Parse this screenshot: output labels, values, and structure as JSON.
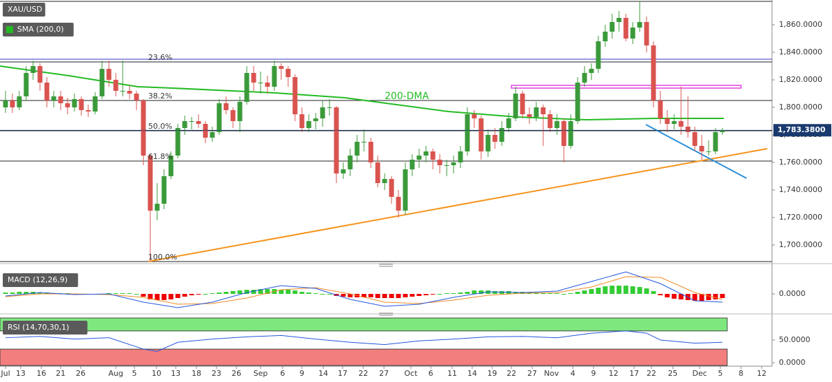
{
  "chart_data": [
    {
      "type": "candlestick",
      "title": "XAU/USD",
      "candles": [
        [
          1800,
          1812,
          1796,
          1805
        ],
        [
          1805,
          1810,
          1796,
          1800
        ],
        [
          1800,
          1812,
          1798,
          1808
        ],
        [
          1808,
          1830,
          1805,
          1825
        ],
        [
          1825,
          1834,
          1820,
          1830
        ],
        [
          1830,
          1832,
          1812,
          1818
        ],
        [
          1818,
          1822,
          1800,
          1805
        ],
        [
          1805,
          1812,
          1800,
          1808
        ],
        [
          1808,
          1812,
          1798,
          1803
        ],
        [
          1803,
          1807,
          1795,
          1800
        ],
        [
          1800,
          1810,
          1797,
          1806
        ],
        [
          1806,
          1808,
          1794,
          1798
        ],
        [
          1798,
          1802,
          1793,
          1797
        ],
        [
          1797,
          1811,
          1795,
          1808
        ],
        [
          1808,
          1834,
          1806,
          1828
        ],
        [
          1828,
          1834,
          1815,
          1820
        ],
        [
          1820,
          1825,
          1808,
          1812
        ],
        [
          1812,
          1834,
          1808,
          1812
        ],
        [
          1812,
          1816,
          1806,
          1810
        ],
        [
          1810,
          1812,
          1798,
          1805
        ],
        [
          1805,
          1806,
          1758,
          1765
        ],
        [
          1765,
          1766,
          1688,
          1725
        ],
        [
          1725,
          1745,
          1718,
          1730
        ],
        [
          1730,
          1755,
          1726,
          1750
        ],
        [
          1750,
          1768,
          1748,
          1765
        ],
        [
          1765,
          1788,
          1763,
          1785
        ],
        [
          1785,
          1794,
          1780,
          1790
        ],
        [
          1790,
          1793,
          1784,
          1790
        ],
        [
          1790,
          1795,
          1785,
          1788
        ],
        [
          1788,
          1790,
          1774,
          1778
        ],
        [
          1778,
          1786,
          1775,
          1782
        ],
        [
          1782,
          1806,
          1780,
          1803
        ],
        [
          1803,
          1808,
          1795,
          1798
        ],
        [
          1798,
          1800,
          1785,
          1790
        ],
        [
          1790,
          1808,
          1782,
          1804
        ],
        [
          1804,
          1830,
          1802,
          1825
        ],
        [
          1825,
          1830,
          1812,
          1818
        ],
        [
          1818,
          1826,
          1810,
          1818
        ],
        [
          1818,
          1823,
          1810,
          1815
        ],
        [
          1815,
          1834,
          1812,
          1830
        ],
        [
          1830,
          1832,
          1820,
          1828
        ],
        [
          1828,
          1830,
          1815,
          1822
        ],
        [
          1822,
          1824,
          1790,
          1795
        ],
        [
          1795,
          1800,
          1782,
          1785
        ],
        [
          1785,
          1795,
          1782,
          1790
        ],
        [
          1790,
          1796,
          1784,
          1792
        ],
        [
          1792,
          1805,
          1786,
          1800
        ],
        [
          1800,
          1806,
          1794,
          1800
        ],
        [
          1800,
          1801,
          1745,
          1752
        ],
        [
          1752,
          1760,
          1748,
          1755
        ],
        [
          1755,
          1770,
          1750,
          1765
        ],
        [
          1765,
          1780,
          1760,
          1775
        ],
        [
          1775,
          1784,
          1768,
          1775
        ],
        [
          1775,
          1778,
          1756,
          1760
        ],
        [
          1760,
          1765,
          1742,
          1745
        ],
        [
          1745,
          1752,
          1740,
          1748
        ],
        [
          1748,
          1750,
          1730,
          1735
        ],
        [
          1735,
          1740,
          1720,
          1725
        ],
        [
          1725,
          1760,
          1722,
          1755
        ],
        [
          1755,
          1766,
          1750,
          1762
        ],
        [
          1762,
          1770,
          1756,
          1765
        ],
        [
          1765,
          1772,
          1760,
          1768
        ],
        [
          1768,
          1770,
          1755,
          1762
        ],
        [
          1762,
          1766,
          1752,
          1758
        ],
        [
          1758,
          1762,
          1750,
          1758
        ],
        [
          1758,
          1765,
          1752,
          1760
        ],
        [
          1760,
          1772,
          1756,
          1768
        ],
        [
          1768,
          1800,
          1765,
          1795
        ],
        [
          1795,
          1798,
          1785,
          1792
        ],
        [
          1792,
          1794,
          1762,
          1768
        ],
        [
          1768,
          1784,
          1764,
          1780
        ],
        [
          1780,
          1785,
          1770,
          1775
        ],
        [
          1775,
          1790,
          1772,
          1785
        ],
        [
          1785,
          1796,
          1782,
          1792
        ],
        [
          1792,
          1815,
          1790,
          1810
        ],
        [
          1810,
          1812,
          1792,
          1795
        ],
        [
          1795,
          1800,
          1788,
          1793
        ],
        [
          1793,
          1804,
          1790,
          1800
        ],
        [
          1800,
          1802,
          1772,
          1795
        ],
        [
          1795,
          1798,
          1782,
          1785
        ],
        [
          1785,
          1795,
          1780,
          1790
        ],
        [
          1790,
          1792,
          1760,
          1772
        ],
        [
          1772,
          1795,
          1770,
          1790
        ],
        [
          1790,
          1822,
          1788,
          1818
        ],
        [
          1818,
          1830,
          1815,
          1825
        ],
        [
          1825,
          1832,
          1820,
          1828
        ],
        [
          1828,
          1852,
          1825,
          1848
        ],
        [
          1848,
          1860,
          1844,
          1855
        ],
        [
          1855,
          1868,
          1850,
          1862
        ],
        [
          1862,
          1870,
          1855,
          1865
        ],
        [
          1865,
          1868,
          1848,
          1850
        ],
        [
          1850,
          1862,
          1846,
          1858
        ],
        [
          1858,
          1877,
          1855,
          1862
        ],
        [
          1862,
          1866,
          1840,
          1845
        ],
        [
          1845,
          1848,
          1800,
          1805
        ],
        [
          1805,
          1812,
          1788,
          1792
        ],
        [
          1792,
          1798,
          1782,
          1788
        ],
        [
          1788,
          1795,
          1784,
          1790
        ],
        [
          1790,
          1815,
          1780,
          1786
        ],
        [
          1786,
          1808,
          1778,
          1782
        ],
        [
          1782,
          1786,
          1768,
          1772
        ],
        [
          1772,
          1780,
          1762,
          1768
        ],
        [
          1768,
          1776,
          1765,
          1768
        ],
        [
          1768,
          1785,
          1766,
          1782
        ],
        [
          1782,
          1785,
          1780,
          1783.38
        ]
      ],
      "up_color": "#3a9a3a",
      "down_color": "#d9534f",
      "xlim": [
        -0.8,
        111.2
      ],
      "ylim": [
        1688,
        1877
      ],
      "yticks": [
        {
          "value": 1700,
          "label": "1,700.0000"
        },
        {
          "value": 1720,
          "label": "1,720.0000"
        },
        {
          "value": 1740,
          "label": "1,740.0000"
        },
        {
          "value": 1760,
          "label": "1,760.0000"
        },
        {
          "value": 1780,
          "label": "1,780.0000"
        },
        {
          "value": 1800,
          "label": "1,800.0000"
        },
        {
          "value": 1820,
          "label": "1,820.0000"
        },
        {
          "value": 1840,
          "label": "1,840.0000"
        },
        {
          "value": 1860,
          "label": "1,860.0000"
        }
      ],
      "xticks": [
        {
          "value": 0,
          "label": "Jul"
        },
        {
          "value": 2.2,
          "label": "13"
        },
        {
          "value": 5.2,
          "label": "16"
        },
        {
          "value": 8,
          "label": "21"
        },
        {
          "value": 10.9,
          "label": "26"
        },
        {
          "value": 16,
          "label": "Aug"
        },
        {
          "value": 18.7,
          "label": "5"
        },
        {
          "value": 21.9,
          "label": "10"
        },
        {
          "value": 24.7,
          "label": "13"
        },
        {
          "value": 27.7,
          "label": "18"
        },
        {
          "value": 30.6,
          "label": "23"
        },
        {
          "value": 33.5,
          "label": "26"
        },
        {
          "value": 37,
          "label": "Sep"
        },
        {
          "value": 40.2,
          "label": "6"
        },
        {
          "value": 43,
          "label": "9"
        },
        {
          "value": 46.1,
          "label": "14"
        },
        {
          "value": 48.9,
          "label": "17"
        },
        {
          "value": 51.9,
          "label": "22"
        },
        {
          "value": 54.9,
          "label": "27"
        },
        {
          "value": 58.8,
          "label": "Oct"
        },
        {
          "value": 61.7,
          "label": "6"
        },
        {
          "value": 64.8,
          "label": "11"
        },
        {
          "value": 67.7,
          "label": "14"
        },
        {
          "value": 70.6,
          "label": "19"
        },
        {
          "value": 73.4,
          "label": "22"
        },
        {
          "value": 76.4,
          "label": "27"
        },
        {
          "value": 79.2,
          "label": "Nov"
        },
        {
          "value": 82.3,
          "label": "4"
        },
        {
          "value": 85.3,
          "label": "9"
        },
        {
          "value": 88.2,
          "label": "12"
        },
        {
          "value": 91.2,
          "label": "17"
        },
        {
          "value": 93.7,
          "label": "22"
        },
        {
          "value": 96.8,
          "label": "25"
        },
        {
          "value": 100.7,
          "label": "Dec"
        },
        {
          "value": 103.7,
          "label": "5"
        },
        {
          "value": 106.7,
          "label": "8"
        },
        {
          "value": 109.7,
          "label": "12"
        }
      ],
      "sma": {
        "name": "SMA (200,0)",
        "color": "#22bb22",
        "x": [
          -0.8,
          9.2,
          19.2,
          24.2,
          39.2,
          49.2,
          55.2,
          64.2,
          69.2,
          74.2,
          84.2,
          94.2,
          104.2
        ],
        "values": [
          1830,
          1823,
          1815,
          1814,
          1810.5,
          1807,
          1803,
          1797,
          1795,
          1793,
          1791,
          1792,
          1792
        ]
      },
      "hlines": [
        {
          "value": 1877,
          "color": "#222222"
        },
        {
          "value": 1835,
          "color": "#3333cc"
        }
      ],
      "fib_levels": [
        {
          "value": 1833,
          "label": "23.6%"
        },
        {
          "value": 1805,
          "label": "38.2%"
        },
        {
          "value": 1783,
          "label": "50.0%"
        },
        {
          "value": 1761,
          "label": "61.8%"
        },
        {
          "value": 1688,
          "label": "100.0%"
        }
      ],
      "trendlines": [
        {
          "color": "#f7931a",
          "x": [
            20.7,
            110.5
          ],
          "values": [
            1688,
            1770
          ]
        },
        {
          "color": "#2a8fd8",
          "x": [
            92.9,
            107.5
          ],
          "values": [
            1787.5,
            1748.5
          ]
        }
      ],
      "zone": {
        "color": "#e040e0",
        "x": [
          73.4,
          106.7
        ],
        "values": [
          1816,
          1814
        ]
      },
      "annotations": [
        {
          "text": "200-DMA",
          "x": 55,
          "value": 1808,
          "color": "#22bb22"
        }
      ],
      "last_price": {
        "value": 1783.38,
        "label": "1,783.3800"
      }
    },
    {
      "type": "macd",
      "title": "MACD (12,26,9)",
      "ylim": [
        -25,
        35
      ],
      "yticks": [
        {
          "value": 0,
          "label": "0.0000"
        }
      ],
      "histogram": [
        2,
        2,
        3,
        3,
        3,
        2,
        2,
        1,
        1,
        1,
        0,
        0,
        -1,
        -1,
        0,
        1,
        1,
        1,
        1,
        0,
        -4,
        -8,
        -9,
        -9,
        -8,
        -6,
        -4,
        -2,
        -1,
        0,
        1,
        2,
        3,
        4,
        5,
        6,
        6,
        7,
        7,
        7,
        6,
        6,
        5,
        3,
        2,
        1,
        0,
        0,
        -3,
        -4,
        -5,
        -5,
        -5,
        -5,
        -6,
        -6,
        -6,
        -6,
        -5,
        -4,
        -3,
        -2,
        -1,
        0,
        1,
        1,
        2,
        3,
        5,
        5,
        5,
        4,
        4,
        4,
        3,
        3,
        2,
        2,
        1,
        1,
        1,
        0,
        1,
        3,
        5,
        7,
        9,
        11,
        12,
        12,
        12,
        11,
        10,
        8,
        4,
        -2,
        -5,
        -7,
        -8,
        -9,
        -10,
        -10,
        -9,
        -8,
        -6
      ],
      "up_color": "#33cc33",
      "down_color": "#ee0000",
      "x": [
        0,
        5,
        10,
        15,
        20,
        25,
        30,
        35,
        40,
        45,
        50,
        55,
        60,
        65,
        70,
        75,
        80,
        85,
        90,
        95,
        100,
        104
      ],
      "macd": {
        "color": "#2255dd",
        "values": [
          -3,
          2,
          -1,
          0,
          -12,
          -20,
          -12,
          2,
          12,
          8,
          -8,
          -18,
          -15,
          -5,
          3,
          2,
          4,
          18,
          32,
          15,
          -10,
          -12
        ]
      },
      "signal": {
        "color": "#f08a24",
        "values": [
          -4,
          0,
          0,
          -1,
          -5,
          -15,
          -14,
          -6,
          6,
          9,
          0,
          -12,
          -14,
          -9,
          -2,
          1,
          2,
          10,
          25,
          24,
          2,
          -8
        ]
      }
    },
    {
      "type": "rsi",
      "title": "RSI (14,70,30,1)",
      "ylim": [
        -7.6,
        101.5
      ],
      "yticks": [
        {
          "value": 0,
          "label": "0.0000"
        },
        {
          "value": 50,
          "label": "50.0000"
        }
      ],
      "overbought": 70,
      "oversold": 30,
      "line_color": "#2255dd",
      "x": [
        0,
        5,
        10,
        15,
        20,
        22,
        25,
        30,
        35,
        40,
        45,
        50,
        55,
        60,
        65,
        70,
        75,
        80,
        85,
        90,
        93,
        95,
        100,
        104
      ],
      "values": [
        55,
        58,
        52,
        55,
        30,
        25,
        45,
        52,
        57,
        60,
        52,
        45,
        40,
        48,
        52,
        57,
        58,
        55,
        65,
        70,
        65,
        50,
        43,
        45
      ]
    }
  ]
}
